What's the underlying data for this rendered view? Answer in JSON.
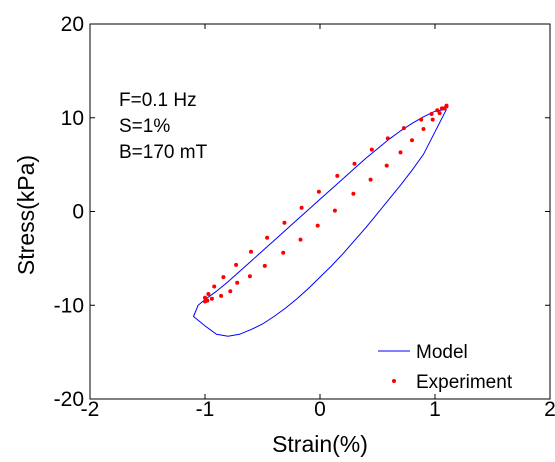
{
  "chart_data": {
    "type": "line",
    "title": "",
    "xlabel": "Strain(%)",
    "ylabel": "Stress(kPa)",
    "xlim": [
      -2,
      2
    ],
    "ylim": [
      -20,
      20
    ],
    "xticks": [
      "-2",
      "-1",
      "0",
      "1",
      "2"
    ],
    "yticks": [
      "-20",
      "-10",
      "0",
      "10",
      "20"
    ],
    "grid": false,
    "legend_position": "bottom-right",
    "annotations": [
      "F=0.1 Hz",
      "S=1%",
      "B=170 mT"
    ],
    "colors": {
      "model": "#0000ff",
      "experiment": "#ff0000",
      "axes": "#000000"
    },
    "series": [
      {
        "name": "Model",
        "style": "line",
        "color": "#0000ff",
        "x": [
          1.1,
          1.0,
          0.9,
          0.8,
          0.7,
          0.6,
          0.5,
          0.4,
          0.3,
          0.2,
          0.1,
          0.0,
          -0.1,
          -0.2,
          -0.3,
          -0.4,
          -0.5,
          -0.6,
          -0.7,
          -0.8,
          -0.9,
          -1.0,
          -1.1,
          -1.06,
          -1.0,
          -0.9,
          -0.8,
          -0.7,
          -0.6,
          -0.5,
          -0.4,
          -0.3,
          -0.2,
          -0.1,
          0.0,
          0.1,
          0.2,
          0.3,
          0.4,
          0.5,
          0.6,
          0.7,
          0.8,
          0.9,
          1.0,
          1.1
        ],
        "y": [
          10.9,
          8.5,
          6.1,
          4.4,
          2.8,
          1.3,
          -0.2,
          -1.7,
          -3.1,
          -4.5,
          -5.8,
          -7.0,
          -8.2,
          -9.3,
          -10.3,
          -11.2,
          -12.0,
          -12.6,
          -13.1,
          -13.3,
          -13.1,
          -12.2,
          -11.2,
          -10.0,
          -9.4,
          -8.5,
          -7.5,
          -6.4,
          -5.3,
          -4.2,
          -3.1,
          -2.0,
          -0.9,
          0.2,
          1.3,
          2.4,
          3.5,
          4.6,
          5.7,
          6.7,
          7.7,
          8.6,
          9.4,
          10.1,
          10.7,
          10.9
        ]
      },
      {
        "name": "Experiment",
        "style": "points",
        "color": "#ff0000",
        "x": [
          1.1,
          1.06,
          1.02,
          0.97,
          0.88,
          0.73,
          0.59,
          0.45,
          0.3,
          0.15,
          -0.01,
          -0.16,
          -0.31,
          -0.46,
          -0.6,
          -0.73,
          -0.84,
          -0.92,
          -0.97,
          -1.0,
          -1.0,
          -0.98,
          -0.94,
          -0.86,
          -0.78,
          -0.72,
          -0.61,
          -0.48,
          -0.32,
          -0.17,
          -0.02,
          0.13,
          0.29,
          0.44,
          0.58,
          0.7,
          0.8,
          0.9,
          0.98,
          1.04,
          1.08,
          1.1
        ],
        "y": [
          11.2,
          11.0,
          10.8,
          10.4,
          9.8,
          8.9,
          7.8,
          6.6,
          5.1,
          3.8,
          2.1,
          0.4,
          -1.2,
          -2.8,
          -4.3,
          -5.7,
          -7.0,
          -8.0,
          -8.8,
          -9.2,
          -9.6,
          -9.5,
          -9.3,
          -9.0,
          -8.5,
          -7.6,
          -6.9,
          -5.8,
          -4.4,
          -3.0,
          -1.5,
          0.1,
          1.9,
          3.4,
          4.9,
          6.3,
          7.6,
          8.8,
          9.8,
          10.5,
          11.0,
          11.3
        ]
      }
    ]
  }
}
